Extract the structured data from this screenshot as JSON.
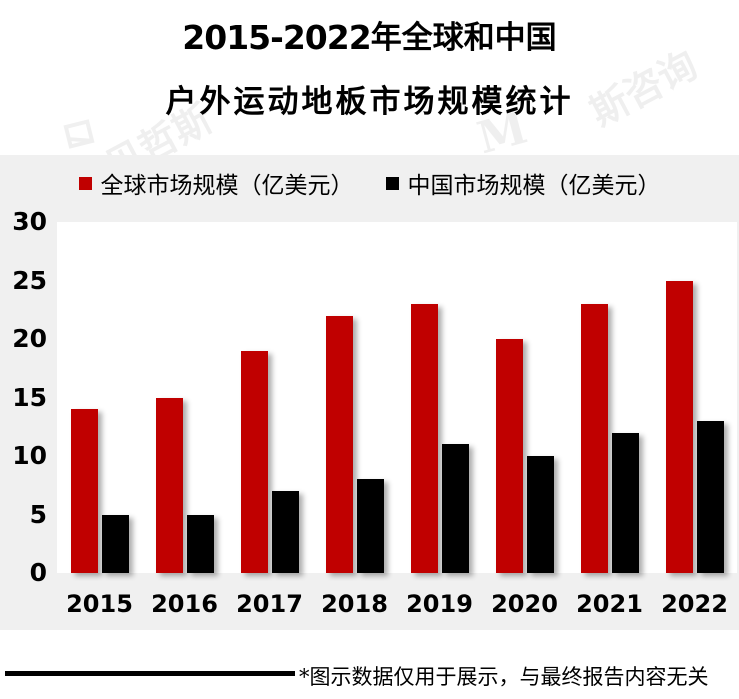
{
  "title": {
    "line1_prefix": "2015-2022",
    "line1_suffix": "年全球和中国",
    "line2": "户外运动地板市场规模统计"
  },
  "footer": {
    "note": "*图示数据仅用于展示，与最终报告内容无关"
  },
  "watermark": {
    "left_text": "贝哲斯",
    "right_text": "斯咨询",
    "logo_glyph": "M"
  },
  "colors": {
    "global_series": "#C00000",
    "china_series": "#000000",
    "panel_bg": "#F0F0F0",
    "plot_bg": "#FFFFFF",
    "text": "#000000"
  },
  "chart_data": {
    "type": "bar",
    "title": "2015-2022年全球和中国户外运动地板市场规模统计",
    "categories": [
      "2015",
      "2016",
      "2017",
      "2018",
      "2019",
      "2020",
      "2021",
      "2022"
    ],
    "series": [
      {
        "name": "全球市场规模（亿美元）",
        "color": "#C00000",
        "values": [
          14,
          15,
          19,
          22,
          23,
          20,
          23,
          25
        ]
      },
      {
        "name": "中国市场规模（亿美元）",
        "color": "#000000",
        "values": [
          5,
          5,
          7,
          8,
          11,
          10,
          12,
          13
        ]
      }
    ],
    "xlabel": "",
    "ylabel": "",
    "ylim": [
      0,
      30
    ],
    "yticks": [
      30,
      25,
      20,
      15,
      10,
      5,
      0
    ],
    "grid": false,
    "legend_position": "top"
  }
}
